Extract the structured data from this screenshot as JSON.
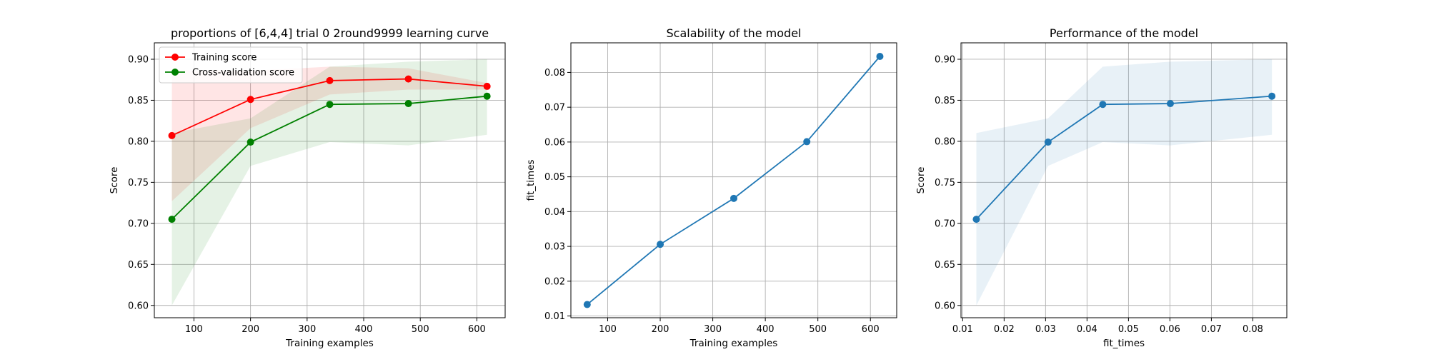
{
  "chart_data": [
    {
      "type": "line",
      "title": "proportions of [6,4,4] trial 0 2round9999 learning curve",
      "xlabel": "Training examples",
      "ylabel": "Score",
      "xlim": [
        30,
        650
      ],
      "ylim": [
        0.585,
        0.92
      ],
      "xticks": [
        100,
        200,
        300,
        400,
        500,
        600
      ],
      "yticks": [
        0.6,
        0.65,
        0.7,
        0.75,
        0.8,
        0.85,
        0.9
      ],
      "xtick_labels": [
        "100",
        "200",
        "300",
        "400",
        "500",
        "600"
      ],
      "ytick_labels": [
        "0.60",
        "0.65",
        "0.70",
        "0.75",
        "0.80",
        "0.85",
        "0.90"
      ],
      "grid": true,
      "legend_position": "top-left",
      "x": [
        61,
        200,
        340,
        479,
        618
      ],
      "series": [
        {
          "name": "Training score",
          "color": "#ff0000",
          "values": [
            0.807,
            0.851,
            0.874,
            0.876,
            0.867
          ],
          "band_low": [
            0.727,
            0.816,
            0.857,
            0.863,
            0.863
          ],
          "band_high": [
            0.887,
            0.886,
            0.891,
            0.889,
            0.871
          ]
        },
        {
          "name": "Cross-validation score",
          "color": "#008000",
          "values": [
            0.705,
            0.799,
            0.845,
            0.846,
            0.855
          ],
          "band_low": [
            0.6,
            0.77,
            0.799,
            0.795,
            0.808
          ],
          "band_high": [
            0.81,
            0.828,
            0.891,
            0.897,
            0.9
          ]
        }
      ]
    },
    {
      "type": "line",
      "title": "Scalability of the model",
      "xlabel": "Training examples",
      "ylabel": "fit_times",
      "xlim": [
        30,
        650
      ],
      "ylim": [
        0.0095,
        0.0885
      ],
      "xticks": [
        100,
        200,
        300,
        400,
        500,
        600
      ],
      "yticks": [
        0.01,
        0.02,
        0.03,
        0.04,
        0.05,
        0.06,
        0.07,
        0.08
      ],
      "xtick_labels": [
        "100",
        "200",
        "300",
        "400",
        "500",
        "600"
      ],
      "ytick_labels": [
        "0.01",
        "0.02",
        "0.03",
        "0.04",
        "0.05",
        "0.06",
        "0.07",
        "0.08"
      ],
      "grid": true,
      "x": [
        61,
        200,
        340,
        479,
        618
      ],
      "series": [
        {
          "color": "#1f77b4",
          "values": [
            0.0133,
            0.0306,
            0.0438,
            0.0601,
            0.0846
          ],
          "band_low": [
            0.0132,
            0.0305,
            0.0437,
            0.06,
            0.0845
          ],
          "band_high": [
            0.0134,
            0.0307,
            0.0439,
            0.0602,
            0.0847
          ]
        }
      ]
    },
    {
      "type": "line",
      "title": "Performance of the model",
      "xlabel": "fit_times",
      "ylabel": "Score",
      "xlim": [
        0.0096,
        0.0882
      ],
      "ylim": [
        0.585,
        0.92
      ],
      "xticks": [
        0.01,
        0.02,
        0.03,
        0.04,
        0.05,
        0.06,
        0.07,
        0.08
      ],
      "yticks": [
        0.6,
        0.65,
        0.7,
        0.75,
        0.8,
        0.85,
        0.9
      ],
      "xtick_labels": [
        "0.01",
        "0.02",
        "0.03",
        "0.04",
        "0.05",
        "0.06",
        "0.07",
        "0.08"
      ],
      "ytick_labels": [
        "0.60",
        "0.65",
        "0.70",
        "0.75",
        "0.80",
        "0.85",
        "0.90"
      ],
      "grid": true,
      "x": [
        0.0133,
        0.0306,
        0.0438,
        0.0601,
        0.0846
      ],
      "series": [
        {
          "color": "#1f77b4",
          "values": [
            0.705,
            0.799,
            0.845,
            0.846,
            0.855
          ],
          "band_low": [
            0.6,
            0.77,
            0.799,
            0.795,
            0.808
          ],
          "band_high": [
            0.81,
            0.828,
            0.891,
            0.897,
            0.9
          ]
        }
      ]
    }
  ]
}
